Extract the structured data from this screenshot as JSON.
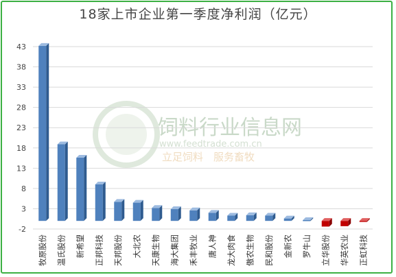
{
  "chart_data": {
    "type": "bar",
    "title": "18家上市企业第一季度净利润（亿元）",
    "xlabel": "",
    "ylabel": "",
    "ylim": [
      -2,
      43
    ],
    "yticks": [
      -2,
      3,
      8,
      13,
      18,
      23,
      28,
      33,
      38,
      43
    ],
    "grid": true,
    "categories": [
      "牧原股份",
      "温氏股份",
      "新希望",
      "正邦科技",
      "天邦股份",
      "大北农",
      "天康生物",
      "海大集团",
      "禾丰牧业",
      "唐人神",
      "龙大肉食",
      "傲农生物",
      "民和股份",
      "金新农",
      "罗牛山",
      "立华股份",
      "华英农业",
      "正虹科技"
    ],
    "values": [
      43.2,
      18.9,
      15.6,
      9.0,
      4.7,
      4.5,
      3.2,
      2.9,
      2.6,
      2.0,
      1.3,
      1.4,
      1.3,
      0.6,
      0.2,
      -1.4,
      -1.3,
      -0.2
    ],
    "colors": {
      "positive": "#4f81bd",
      "negative": "#c00000",
      "frame": "#3cb043"
    }
  },
  "watermark": {
    "name": "饲料行业信息网",
    "url": "www.feedtrade.com.cn",
    "slogan": "立足饲料　服务畜牧"
  }
}
